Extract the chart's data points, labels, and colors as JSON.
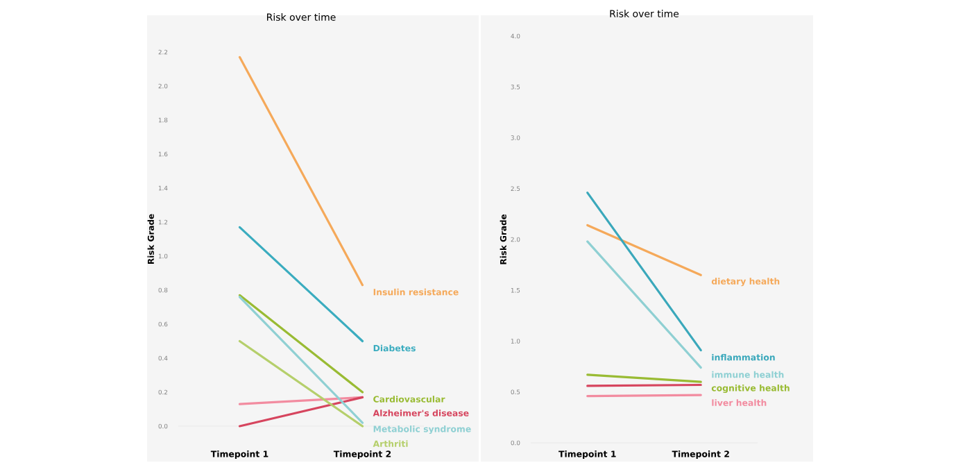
{
  "chart_data": [
    {
      "type": "line",
      "title": "Risk over time",
      "ylabel": "Risk Grade",
      "categories": [
        "Timepoint 1",
        "Timepoint 2"
      ],
      "ylim": [
        0,
        2.2
      ],
      "yticks": [
        {
          "value": 0,
          "label": "0.0"
        },
        {
          "value": 0.2,
          "label": "0.2"
        },
        {
          "value": 0.4,
          "label": "0.4"
        },
        {
          "value": 0.6,
          "label": "0.6"
        },
        {
          "value": 0.8,
          "label": "0.8"
        },
        {
          "value": 1.0,
          "label": "1.0"
        },
        {
          "value": 1.2,
          "label": "1.2"
        },
        {
          "value": 1.4,
          "label": "1.4"
        },
        {
          "value": 1.6,
          "label": "1.6"
        },
        {
          "value": 1.8,
          "label": "1.8"
        },
        {
          "value": 2.0,
          "label": "2.0"
        },
        {
          "value": 2.2,
          "label": "2.2"
        }
      ],
      "grid": false,
      "legend": false,
      "series": [
        {
          "name": "Insulin resistance",
          "color": "#f5a95a",
          "values": [
            2.17,
            0.83
          ]
        },
        {
          "name": "Diabetes",
          "color": "#3aacbf",
          "values": [
            1.17,
            0.5
          ]
        },
        {
          "name": "Cardiovascular",
          "color": "#99bb33",
          "values": [
            0.77,
            0.2
          ]
        },
        {
          "color": "#f28ca0",
          "values": [
            0.13,
            0.17
          ]
        },
        {
          "name": "Alzheimer's disease",
          "color": "#d6455e",
          "values": [
            0.0,
            0.17
          ]
        },
        {
          "name": "Metabolic syndrome",
          "color": "#8fd0d3",
          "values": [
            0.76,
            0.02
          ]
        },
        {
          "name": "Arthriti",
          "color": "#b5cf6b",
          "values": [
            0.5,
            0.0
          ]
        }
      ]
    },
    {
      "type": "line",
      "title": "Risk over time",
      "ylabel": "Risk Grade",
      "categories": [
        "Timepoint 1",
        "Timepoint 2"
      ],
      "ylim": [
        0,
        4.0
      ],
      "yticks": [
        {
          "value": 0,
          "label": "0.0"
        },
        {
          "value": 0.5,
          "label": "0.5"
        },
        {
          "value": 1.0,
          "label": "1.0"
        },
        {
          "value": 1.5,
          "label": "1.5"
        },
        {
          "value": 2.0,
          "label": "2.0"
        },
        {
          "value": 2.5,
          "label": "2.5"
        },
        {
          "value": 3.0,
          "label": "3.0"
        },
        {
          "value": 3.5,
          "label": "3.5"
        },
        {
          "value": 4.0,
          "label": "4.0"
        }
      ],
      "grid": false,
      "legend": false,
      "series": [
        {
          "name": "dietary health",
          "color": "#f5a95a",
          "values": [
            2.14,
            1.65
          ]
        },
        {
          "name": "inflammation",
          "color": "#3aa8bb",
          "values": [
            2.46,
            0.91
          ]
        },
        {
          "name": "immune health",
          "color": "#8fd0d3",
          "values": [
            1.98,
            0.74
          ]
        },
        {
          "name": "cognitive health",
          "color": "#99bb33",
          "values": [
            0.67,
            0.6
          ]
        },
        {
          "color": "#d6455e",
          "values": [
            0.56,
            0.57
          ]
        },
        {
          "name": "liver health",
          "color": "#f28ca0",
          "values": [
            0.46,
            0.47
          ]
        }
      ]
    }
  ]
}
